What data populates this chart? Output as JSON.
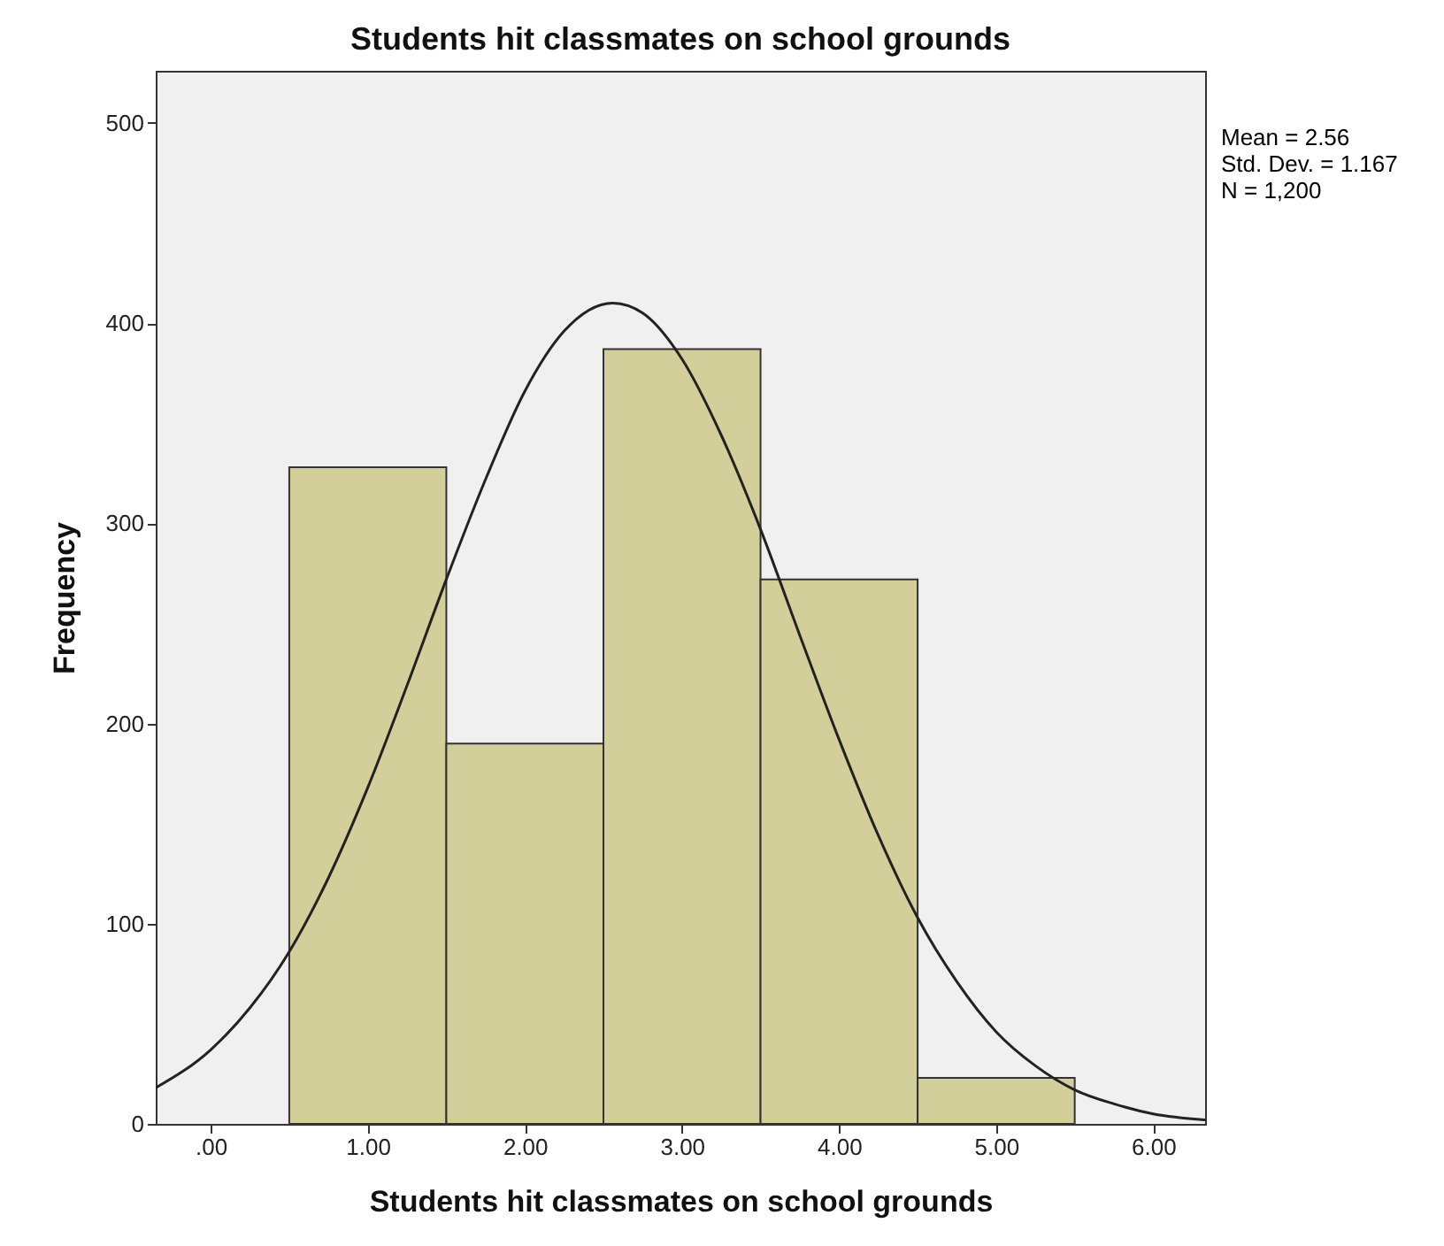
{
  "chart_data": {
    "type": "histogram",
    "title": "Students hit classmates on school grounds",
    "xlabel": "Students hit classmates on school grounds",
    "ylabel": "Frequency",
    "bins": [
      0.5,
      1.5,
      2.5,
      3.5,
      4.5,
      5.5
    ],
    "values": [
      328,
      190,
      387,
      272,
      23
    ],
    "color": "#d3cf9b",
    "xlim": [
      -0.35,
      6.33
    ],
    "xticks": [
      {
        "value": 0,
        "label": ".00"
      },
      {
        "value": 1,
        "label": "1.00"
      },
      {
        "value": 2,
        "label": "2.00"
      },
      {
        "value": 3,
        "label": "3.00"
      },
      {
        "value": 4,
        "label": "4.00"
      },
      {
        "value": 5,
        "label": "5.00"
      },
      {
        "value": 6,
        "label": "6.00"
      }
    ],
    "ylim": [
      0,
      526
    ],
    "yticks": [
      0,
      100,
      200,
      300,
      400,
      500
    ],
    "series": [
      {
        "type": "line",
        "color": "#222222",
        "x": [
          -0.35,
          0,
          0.25,
          0.5,
          0.75,
          1,
          1.25,
          1.5,
          1.75,
          2,
          2.25,
          2.56,
          2.75,
          3,
          3.25,
          3.5,
          3.75,
          4,
          4.25,
          4.5,
          4.75,
          5,
          5.25,
          5.5,
          5.75,
          6,
          6.33
        ],
        "values": [
          18,
          37,
          58,
          86,
          123,
          168,
          219,
          272,
          322,
          366,
          396,
          410,
          405,
          382,
          344,
          297,
          244,
          192,
          144,
          103,
          71,
          46,
          29,
          17,
          10,
          5,
          2
        ]
      }
    ],
    "annotations": [
      "Mean = 2.56",
      "Std. Dev. = 1.167",
      "N = 1,200"
    ]
  }
}
